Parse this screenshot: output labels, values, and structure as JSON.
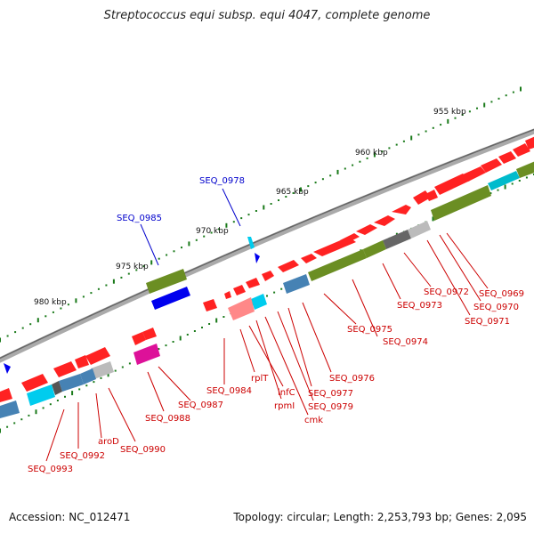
{
  "title": "Streptococcus equi subsp. equi 4047, complete genome",
  "footer": {
    "accession": "Accession: NC_012471",
    "summary": "Topology: circular; Length: 2,253,793 bp; Genes: 2,095"
  },
  "colors": {
    "cds": "#ff0000",
    "trna": "#0000ff",
    "backbone": "#888888",
    "tick": "#1a7a1a",
    "label_red": "#cc0000",
    "label_blue": "#0000cc"
  },
  "ticks": [
    "955 kbp",
    "960 kbp",
    "965 kbp",
    "970 kbp",
    "975 kbp",
    "980 kbp"
  ],
  "labels": {
    "blue": [
      "SEQ_0978",
      "SEQ_0985"
    ],
    "red": [
      "SEQ_0969",
      "SEQ_0970",
      "SEQ_0971",
      "SEQ_0972",
      "SEQ_0973",
      "SEQ_0974",
      "SEQ_0975",
      "SEQ_0976",
      "SEQ_0977",
      "SEQ_0979",
      "cmk",
      "rpmI",
      "infC",
      "rplT",
      "SEQ_0984",
      "SEQ_0987",
      "SEQ_0988",
      "SEQ_0990",
      "aroD",
      "SEQ_0992",
      "SEQ_0993"
    ]
  }
}
